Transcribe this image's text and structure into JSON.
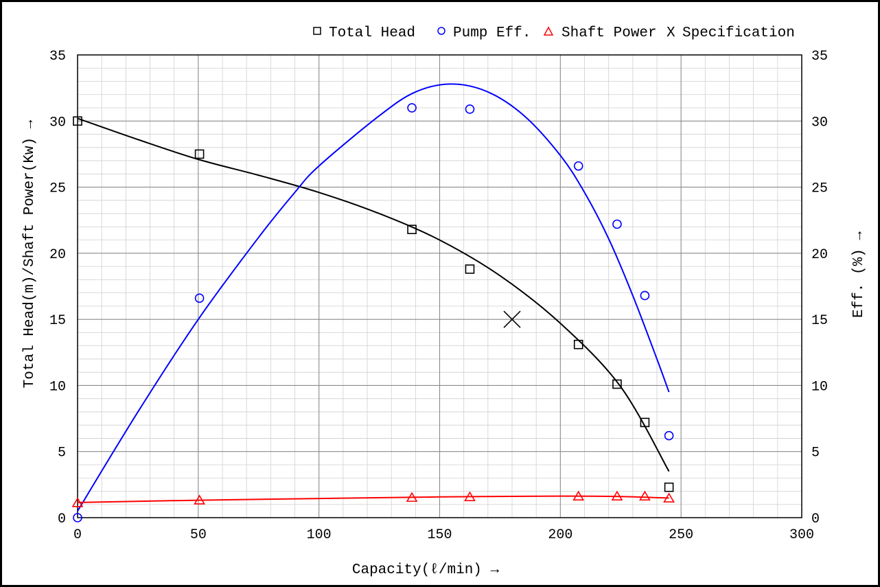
{
  "chart_data": {
    "type": "line",
    "xlabel": "Capacity(ℓ/min) →",
    "ylabel_left": "Total Head(m)/Shaft Power(Kw) →",
    "ylabel_right": "Eff. (%) →",
    "xlim": [
      0,
      300
    ],
    "ylim_left": [
      0,
      35
    ],
    "ylim_right": [
      0,
      35
    ],
    "x_ticks": [
      "0",
      "50",
      "100",
      "150",
      "200",
      "250",
      "300"
    ],
    "y_ticks_left": [
      "0",
      "5",
      "10",
      "15",
      "20",
      "25",
      "30",
      "35"
    ],
    "y_ticks_right": [
      "0",
      "5",
      "10",
      "15",
      "20",
      "25",
      "30",
      "35"
    ],
    "grid": true,
    "legend_position": "top",
    "legend": [
      {
        "symbol": "□",
        "label": "Total Head"
      },
      {
        "symbol": "○",
        "label": "Pump Eff."
      },
      {
        "symbol": "△",
        "label": "Shaft Power"
      },
      {
        "symbol": "X",
        "label": "Specification"
      }
    ],
    "series": [
      {
        "name": "Total Head",
        "color": "#000000",
        "marker": "square",
        "points": [
          [
            0,
            30.0
          ],
          [
            50.5,
            27.5
          ],
          [
            138.5,
            21.8
          ],
          [
            162.5,
            18.8
          ],
          [
            207.5,
            13.1
          ],
          [
            223.5,
            10.1
          ],
          [
            235.0,
            7.2
          ],
          [
            245.0,
            2.3
          ]
        ],
        "fit": [
          [
            0,
            30.2
          ],
          [
            25,
            28.6
          ],
          [
            50,
            27.1
          ],
          [
            75,
            25.9
          ],
          [
            100,
            24.6
          ],
          [
            125,
            23.0
          ],
          [
            150,
            21.0
          ],
          [
            175,
            18.3
          ],
          [
            200,
            14.7
          ],
          [
            225,
            9.9
          ],
          [
            245,
            3.5
          ]
        ]
      },
      {
        "name": "Pump Eff.",
        "color": "#0000ff",
        "marker": "circle",
        "points": [
          [
            0,
            0.0
          ],
          [
            50.5,
            16.6
          ],
          [
            138.5,
            31.0
          ],
          [
            162.5,
            30.9
          ],
          [
            207.5,
            26.6
          ],
          [
            223.5,
            22.2
          ],
          [
            235.0,
            16.8
          ],
          [
            245.0,
            6.2
          ]
        ],
        "fit": [
          [
            0,
            0.5
          ],
          [
            25,
            8.0
          ],
          [
            50,
            15.0
          ],
          [
            75,
            21.2
          ],
          [
            90,
            24.6
          ],
          [
            100,
            26.6
          ],
          [
            125,
            30.4
          ],
          [
            140,
            32.2
          ],
          [
            155,
            32.8
          ],
          [
            170,
            32.2
          ],
          [
            185,
            30.4
          ],
          [
            200,
            27.4
          ],
          [
            210,
            24.6
          ],
          [
            220,
            21.1
          ],
          [
            230,
            16.8
          ],
          [
            240,
            12.0
          ],
          [
            245,
            9.5
          ]
        ]
      },
      {
        "name": "Shaft Power",
        "color": "#ff0000",
        "marker": "triangle",
        "points": [
          [
            0,
            1.1
          ],
          [
            50.5,
            1.3
          ],
          [
            138.5,
            1.5
          ],
          [
            162.5,
            1.55
          ],
          [
            207.5,
            1.6
          ],
          [
            223.5,
            1.6
          ],
          [
            235.0,
            1.6
          ],
          [
            245.0,
            1.45
          ]
        ],
        "fit": [
          [
            0,
            1.15
          ],
          [
            50,
            1.32
          ],
          [
            100,
            1.45
          ],
          [
            150,
            1.57
          ],
          [
            200,
            1.63
          ],
          [
            225,
            1.6
          ],
          [
            245,
            1.48
          ]
        ]
      }
    ],
    "specification": {
      "x": 180,
      "y": 15,
      "marker": "X"
    }
  }
}
